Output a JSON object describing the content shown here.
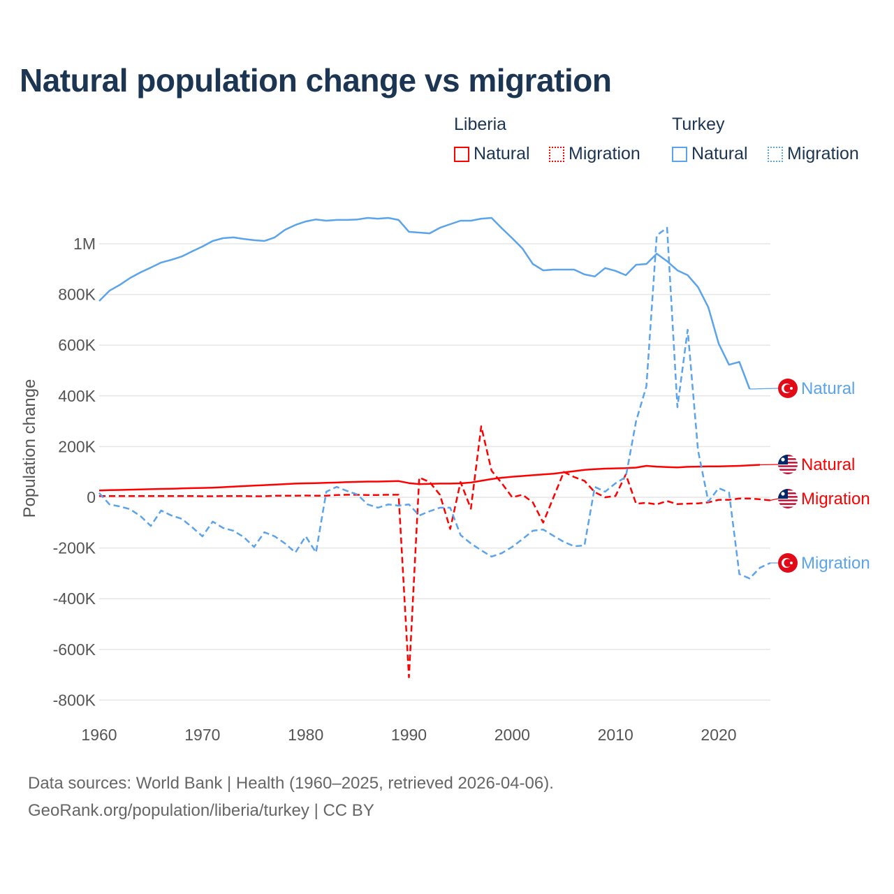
{
  "title": "Natural population change vs migration",
  "legend": {
    "groups": [
      {
        "name": "Liberia",
        "items": [
          "Natural",
          "Migration"
        ],
        "color": "#ff0000"
      },
      {
        "name": "Turkey",
        "items": [
          "Natural",
          "Migration"
        ],
        "color": "#5ba3ea"
      }
    ]
  },
  "footer": {
    "line1": "Data sources: World Bank | Health (1960–2025, retrieved 2026-04-06).",
    "line2": "GeoRank.org/population/liberia/turkey | CC BY"
  },
  "chart_data": {
    "type": "line",
    "title": "Natural population change vs migration",
    "ylabel": "Population change",
    "xlabel": "",
    "xlim": [
      1960,
      2025
    ],
    "ylim": [
      -800000,
      1100000
    ],
    "x_ticks": [
      1960,
      1970,
      1980,
      1990,
      2000,
      2010,
      2020
    ],
    "y_ticks": [
      {
        "value": -800000,
        "label": "-800K"
      },
      {
        "value": -600000,
        "label": "-600K"
      },
      {
        "value": -400000,
        "label": "-400K"
      },
      {
        "value": -200000,
        "label": "-200K"
      },
      {
        "value": 0,
        "label": "0"
      },
      {
        "value": 200000,
        "label": "200K"
      },
      {
        "value": 400000,
        "label": "400K"
      },
      {
        "value": 600000,
        "label": "600K"
      },
      {
        "value": 800000,
        "label": "800K"
      },
      {
        "value": 1000000,
        "label": "1M"
      }
    ],
    "grid": true,
    "legend_position": "top-right",
    "series": [
      {
        "name": "Turkey Natural",
        "end_label": "Natural",
        "country": "Turkey",
        "color": "#5ba3ea",
        "dash": false,
        "start": 1960,
        "values_k": [
          774,
          815,
          838,
          865,
          887,
          906,
          926,
          937,
          950,
          970,
          989,
          1011,
          1022,
          1025,
          1019,
          1014,
          1011,
          1025,
          1055,
          1074,
          1088,
          1096,
          1091,
          1094,
          1094,
          1096,
          1102,
          1099,
          1102,
          1094,
          1047,
          1044,
          1041,
          1063,
          1077,
          1091,
          1091,
          1099,
          1102,
          1061,
          1022,
          981,
          920,
          895,
          898,
          898,
          898,
          879,
          871,
          904,
          893,
          876,
          917,
          920,
          961,
          931,
          895,
          876,
          829,
          749,
          606,
          523,
          534,
          427
        ]
      },
      {
        "name": "Liberia Natural",
        "end_label": "Natural",
        "country": "Liberia",
        "color": "#ff0000",
        "dash": false,
        "start": 1960,
        "values_k": [
          27,
          28,
          29,
          30,
          31,
          32,
          33,
          34,
          35,
          36,
          37,
          38,
          40,
          42,
          44,
          46,
          48,
          50,
          52,
          54,
          55,
          56,
          57,
          58,
          60,
          61,
          62,
          62,
          63,
          64,
          56,
          52,
          53,
          54,
          54,
          55,
          58,
          65,
          72,
          77,
          81,
          84,
          87,
          90,
          93,
          98,
          103,
          108,
          111,
          113,
          114,
          115,
          117,
          124,
          121,
          119,
          118,
          120,
          121,
          122,
          122,
          123,
          124,
          126,
          128
        ]
      },
      {
        "name": "Liberia Migration",
        "end_label": "Migration",
        "country": "Liberia",
        "color": "#ff0000",
        "dash": true,
        "start": 1960,
        "values_k": [
          5,
          5,
          5,
          5,
          5,
          5,
          5,
          5,
          5,
          5,
          4,
          4,
          5,
          5,
          5,
          4,
          4,
          6,
          6,
          6,
          7,
          6,
          6,
          9,
          10,
          10,
          9,
          9,
          10,
          10,
          -710,
          78,
          60,
          10,
          -125,
          60,
          -45,
          280,
          105,
          55,
          0,
          10,
          -20,
          -100,
          0,
          100,
          80,
          65,
          20,
          0,
          5,
          90,
          -25,
          -22,
          -28,
          -15,
          -27,
          -25,
          -24,
          -20,
          -10,
          -10,
          -5,
          -5,
          -8,
          -12
        ]
      },
      {
        "name": "Turkey Migration",
        "end_label": "Migration",
        "country": "Turkey",
        "color": "#5ba3ea",
        "dash": true,
        "start": 1960,
        "values_k": [
          17,
          -28,
          -36,
          -47,
          -74,
          -113,
          -52,
          -72,
          -85,
          -118,
          -154,
          -96,
          -121,
          -132,
          -157,
          -196,
          -138,
          -154,
          -182,
          -218,
          -154,
          -218,
          22,
          41,
          25,
          11,
          -28,
          -41,
          -28,
          -33,
          -28,
          -72,
          -55,
          -41,
          -41,
          -149,
          -182,
          -209,
          -234,
          -220,
          -196,
          -165,
          -132,
          -127,
          -152,
          -176,
          -193,
          -190,
          41,
          22,
          55,
          80,
          300,
          438,
          1033,
          1063,
          355,
          661,
          185,
          -17,
          36,
          19,
          -303,
          -320,
          -278,
          -259
        ]
      }
    ]
  }
}
